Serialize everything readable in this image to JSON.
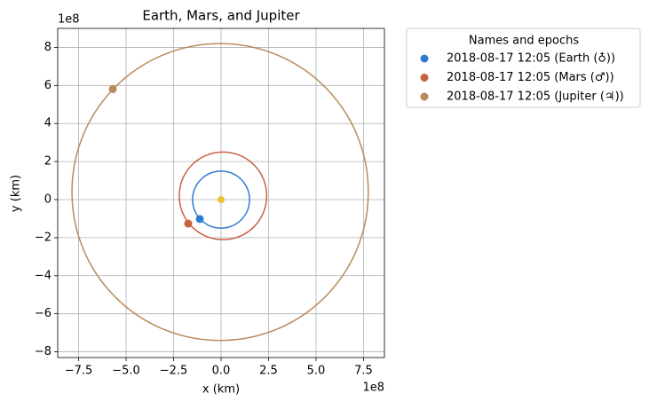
{
  "chart_data": {
    "type": "orbit",
    "title": "Earth, Mars, and Jupiter",
    "xlabel": "x (km)",
    "ylabel": "y (km)",
    "x_offset_label": "1e8",
    "y_offset_label": "1e8",
    "xlim": [
      -8.6,
      8.6
    ],
    "ylim": [
      -8.3,
      9.0
    ],
    "xticks": [
      {
        "value": -7.5,
        "label": "−7.5"
      },
      {
        "value": -5,
        "label": "−5.0"
      },
      {
        "value": -2.5,
        "label": "−2.5"
      },
      {
        "value": 0,
        "label": "0.0"
      },
      2.5,
      {
        "value": 5,
        "label": "5.0"
      },
      7.5
    ],
    "yticks": [
      {
        "value": -8,
        "label": "−8"
      },
      {
        "value": -6,
        "label": "−6"
      },
      {
        "value": -4,
        "label": "−4"
      },
      {
        "value": -2,
        "label": "−2"
      },
      0,
      2,
      4,
      6,
      8
    ],
    "grid": true,
    "legend_title": "Names and epochs",
    "legend": "outside right",
    "attractor": {
      "x": 0,
      "y": 0,
      "color": "#e6c230"
    },
    "series": [
      {
        "name": "2018-08-17 12:05 (Earth (♁))",
        "color": "#2f7bd1",
        "x": [
          1.5,
          1.39,
          1.06,
          0.57,
          0,
          -0.57,
          -1.06,
          -1.39,
          -1.5,
          -1.39,
          -1.06,
          -0.57,
          0,
          0.57,
          1.06,
          1.39
        ],
        "y": [
          0,
          0.57,
          1.06,
          1.39,
          1.5,
          1.39,
          1.06,
          0.57,
          0,
          -0.57,
          -1.06,
          -1.39,
          -1.5,
          -1.39,
          -1.06,
          -0.57
        ],
        "position": {
          "x": -1.12,
          "y": -1.02
        }
      },
      {
        "name": "2018-08-17 12:05 (Mars (♂))",
        "color": "#c8623f",
        "x": [
          2.4,
          2.23,
          1.73,
          0.98,
          0.1,
          -0.78,
          -1.53,
          -2.03,
          -2.2,
          -2.03,
          -1.53,
          -0.78,
          0.1,
          0.98,
          1.73,
          2.23
        ],
        "y": [
          0.2,
          1.08,
          1.83,
          2.33,
          2.5,
          2.33,
          1.83,
          1.08,
          0.2,
          -0.68,
          -1.43,
          -1.93,
          -2.1,
          -1.93,
          -1.43,
          -0.68
        ],
        "position": {
          "x": -1.73,
          "y": -1.26
        }
      },
      {
        "name": "2018-08-17 12:05 (Jupiter (♃))",
        "color": "#b88b5c",
        "x": [
          7.75,
          7.16,
          5.47,
          2.94,
          -0.05,
          -3.04,
          -5.57,
          -7.26,
          -7.85,
          -7.26,
          -5.57,
          -3.04,
          -0.05,
          2.94,
          5.47,
          7.16
        ],
        "y": [
          0.4,
          3.39,
          5.92,
          7.61,
          8.2,
          7.61,
          5.92,
          3.39,
          0.4,
          -2.59,
          -5.12,
          -6.81,
          -7.4,
          -6.81,
          -5.12,
          -2.59
        ],
        "position": {
          "x": -5.7,
          "y": 5.81
        }
      }
    ]
  }
}
